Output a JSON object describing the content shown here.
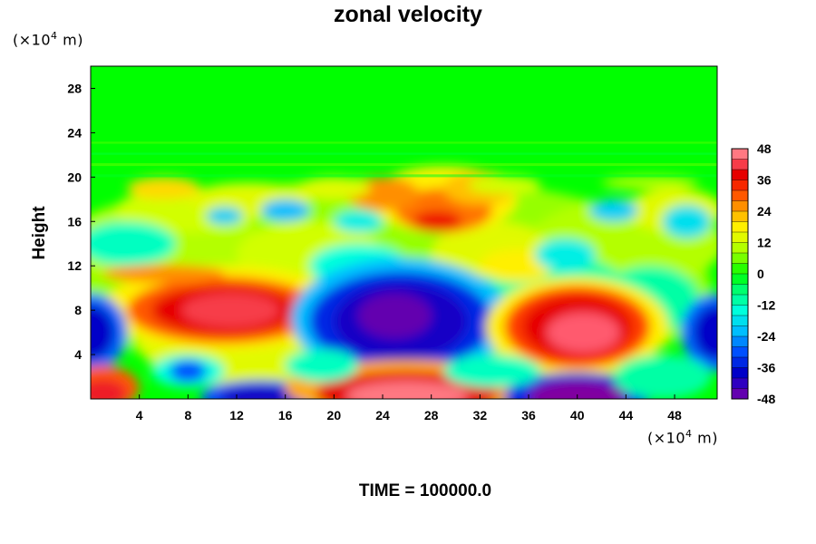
{
  "chart_data": {
    "type": "heatmap",
    "title": "zonal velocity",
    "xlabel": "",
    "ylabel": "Height",
    "x_units": "(×10⁴ m)",
    "y_units": "(×10⁴ m)",
    "x_scale_text": "(×10",
    "y_scale_text": "(×10",
    "scale_exponent": "4",
    "scale_suffix": " m)",
    "xlim": [
      0,
      51.5
    ],
    "ylim": [
      0,
      30
    ],
    "x_ticks": [
      4,
      8,
      12,
      16,
      20,
      24,
      28,
      32,
      36,
      40,
      44,
      48
    ],
    "y_ticks": [
      4,
      8,
      12,
      16,
      20,
      24,
      28
    ],
    "colorbar": {
      "min": -48,
      "max": 48,
      "step": 4,
      "tick_labels": [
        48,
        36,
        24,
        12,
        0,
        -12,
        -24,
        -36,
        -48
      ]
    },
    "annotation": "TIME = 100000.0",
    "features": [
      {
        "type": "jet",
        "sign": "positive",
        "x": 10.5,
        "y": 8.0,
        "max_value": 42
      },
      {
        "type": "jet",
        "sign": "negative",
        "x": 25.5,
        "y": 7.0,
        "min_value": -46
      },
      {
        "type": "jet",
        "sign": "positive",
        "x": 40.0,
        "y": 6.5,
        "max_value": 44
      },
      {
        "type": "jet",
        "sign": "negative",
        "x": 0.5,
        "y": 6.0,
        "min_value": -38
      },
      {
        "type": "jet",
        "sign": "negative",
        "x": 51.0,
        "y": 6.0,
        "min_value": -38
      },
      {
        "type": "jet",
        "sign": "positive",
        "x": 26.0,
        "y": 1.0,
        "max_value": 46
      },
      {
        "type": "jet",
        "sign": "negative",
        "x": 40.0,
        "y": 0.5,
        "min_value": -48
      },
      {
        "type": "jet",
        "sign": "negative",
        "x": 13.5,
        "y": 0.5,
        "min_value": -40
      },
      {
        "type": "jet",
        "sign": "positive",
        "x": 29.0,
        "y": 17.0,
        "max_value": 34
      },
      {
        "type": "layer",
        "y_min": 20,
        "y_max": 30,
        "value": 0
      }
    ]
  }
}
